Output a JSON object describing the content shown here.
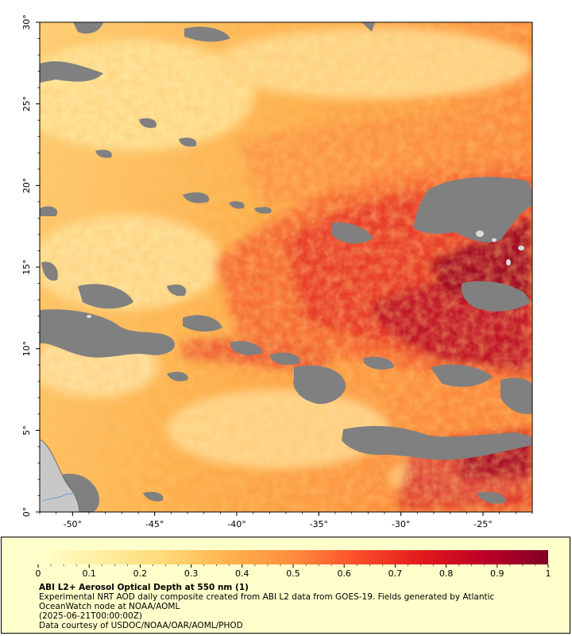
{
  "map": {
    "extent": {
      "lon_min": -52,
      "lon_max": -22,
      "lat_min": 0,
      "lat_max": 30
    },
    "lon_ticks": [
      {
        "value": -50,
        "label": "-50°"
      },
      {
        "value": -45,
        "label": "-45°"
      },
      {
        "value": -40,
        "label": "-40°"
      },
      {
        "value": -35,
        "label": "-35°"
      },
      {
        "value": -30,
        "label": "-30°"
      },
      {
        "value": -25,
        "label": "-25°"
      }
    ],
    "lat_ticks": [
      {
        "value": 0,
        "label": "0°"
      },
      {
        "value": 5,
        "label": "5°"
      },
      {
        "value": 10,
        "label": "10°"
      },
      {
        "value": 15,
        "label": "15°"
      },
      {
        "value": 20,
        "label": "20°"
      },
      {
        "value": 25,
        "label": "25°"
      },
      {
        "value": 30,
        "label": "30°"
      }
    ],
    "colors": {
      "no_data": "#808080",
      "land": "#c8c8c8",
      "river": "#6a9ed8"
    }
  },
  "colorbar": {
    "min": 0,
    "max": 1,
    "ticks": [
      {
        "value": 0,
        "label": "0"
      },
      {
        "value": 0.1,
        "label": "0.1"
      },
      {
        "value": 0.2,
        "label": "0.2"
      },
      {
        "value": 0.3,
        "label": "0.3"
      },
      {
        "value": 0.4,
        "label": "0.4"
      },
      {
        "value": 0.5,
        "label": "0.5"
      },
      {
        "value": 0.6,
        "label": "0.6"
      },
      {
        "value": 0.7,
        "label": "0.7"
      },
      {
        "value": 0.8,
        "label": "0.8"
      },
      {
        "value": 0.9,
        "label": "0.9"
      },
      {
        "value": 1,
        "label": "1"
      }
    ],
    "colors": [
      "#ffffcc",
      "#ffeda0",
      "#fed976",
      "#feb24c",
      "#fd8d3c",
      "#fc4e2a",
      "#e31a1c",
      "#bd0026",
      "#800026"
    ]
  },
  "legend": {
    "background": "#ffffcc",
    "title": "ABI L2+ Aerosol Optical Depth at 550 nm (1)",
    "description": "Experimental NRT AOD daily composite created from ABI L2 data from GOES-19. Fields generated by Atlantic OceanWatch node at NOAA/AOML",
    "time": "(2025-06-21T00:00:00Z)",
    "credit": "Data courtesy of USDOC/NOAA/OAR/AOML/PHOD"
  }
}
